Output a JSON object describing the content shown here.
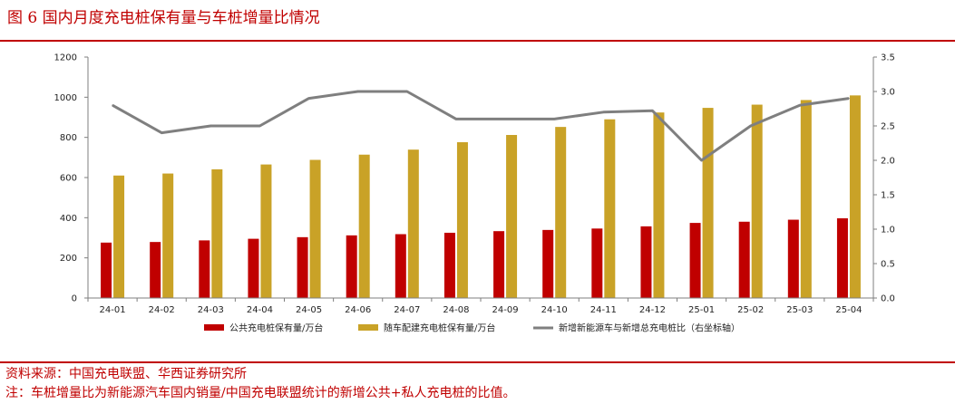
{
  "figure_title": "图 6  国内月度充电桩保有量与车桩增量比情况",
  "source": "资料来源：中国充电联盟、华西证券研究所",
  "note": "注：车桩增量比为新能源汽车国内销量/中国充电联盟统计的新增公共+私人充电桩的比值。",
  "colors": {
    "public": "#c00000",
    "private": "#c9a227",
    "ratio": "#7f7f7f",
    "accent": "#c00000"
  },
  "chart_data": {
    "type": "bar",
    "title": "",
    "categories": [
      "24-01",
      "24-02",
      "24-03",
      "24-04",
      "24-05",
      "24-06",
      "24-07",
      "24-08",
      "24-09",
      "24-10",
      "24-11",
      "24-12",
      "25-01",
      "25-02",
      "25-03",
      "25-04"
    ],
    "series": [
      {
        "name": "公共充电桩保有量/万台",
        "type": "bar",
        "axis": "left",
        "values": [
          276,
          279,
          287,
          295,
          303,
          312,
          318,
          325,
          333,
          339,
          346,
          357,
          374,
          380,
          390,
          397
        ]
      },
      {
        "name": "随车配建充电桩保有量/万台",
        "type": "bar",
        "axis": "left",
        "values": [
          610,
          620,
          641,
          665,
          688,
          714,
          739,
          776,
          812,
          852,
          890,
          924,
          947,
          963,
          986,
          1009
        ]
      },
      {
        "name": "新增新能源车与新增总充电桩比（右坐标轴）",
        "type": "line",
        "axis": "right",
        "values": [
          2.8,
          2.4,
          2.5,
          2.5,
          2.9,
          3.0,
          3.0,
          2.6,
          2.6,
          2.6,
          2.7,
          2.72,
          2.0,
          2.5,
          2.8,
          2.9
        ]
      }
    ],
    "ylim_left": [
      0,
      1200
    ],
    "yticks_left": [
      "0",
      "200",
      "400",
      "600",
      "800",
      "1000",
      "1200"
    ],
    "ylim_right": [
      0,
      3.5
    ],
    "yticks_right": [
      "0.0",
      "0.5",
      "1.0",
      "1.5",
      "2.0",
      "2.5",
      "3.0",
      "3.5"
    ],
    "legend_position": "bottom"
  }
}
